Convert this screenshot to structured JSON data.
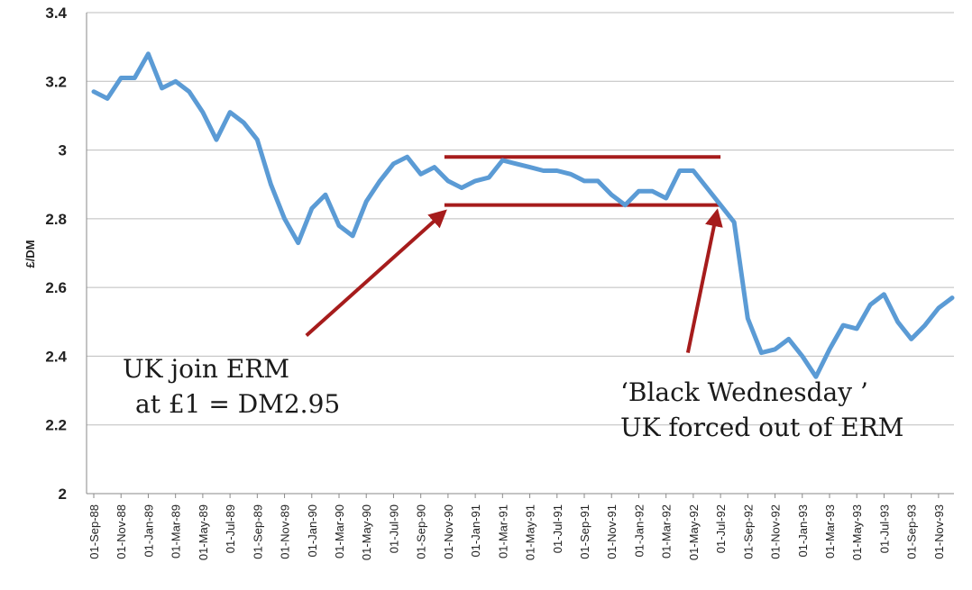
{
  "chart_data": {
    "type": "line",
    "title": "",
    "xlabel": "",
    "ylabel": "£/DM",
    "ylim": [
      2,
      3.4
    ],
    "yticks": [
      "2",
      "2.2",
      "2.4",
      "2.6",
      "2.8",
      "3",
      "3.2",
      "3.4"
    ],
    "grid": true,
    "legend": "none",
    "colors": {
      "series": "#5b9bd5",
      "annotation": "#a61c1c",
      "grid": "#bdbdbd"
    },
    "x_labels": [
      "01-Sep-88",
      "01-Nov-88",
      "01-Jan-89",
      "01-Mar-89",
      "01-May-89",
      "01-Jul-89",
      "01-Sep-89",
      "01-Nov-89",
      "01-Jan-90",
      "01-Mar-90",
      "01-May-90",
      "01-Jul-90",
      "01-Sep-90",
      "01-Nov-90",
      "01-Jan-91",
      "01-Mar-91",
      "01-May-91",
      "01-Jul-91",
      "01-Sep-91",
      "01-Nov-91",
      "01-Jan-92",
      "01-Mar-92",
      "01-May-92",
      "01-Jul-92",
      "01-Sep-92",
      "01-Nov-92",
      "01-Jan-93",
      "01-Mar-93",
      "01-May-93",
      "01-Jul-93",
      "01-Sep-93",
      "01-Nov-93"
    ],
    "series": [
      {
        "values": [
          3.17,
          3.15,
          3.21,
          3.21,
          3.28,
          3.18,
          3.2,
          3.17,
          3.11,
          3.03,
          3.11,
          3.08,
          3.03,
          2.9,
          2.8,
          2.73,
          2.83,
          2.87,
          2.78,
          2.75,
          2.85,
          2.91,
          2.96,
          2.98,
          2.93,
          2.95,
          2.91,
          2.89,
          2.91,
          2.92,
          2.97,
          2.96,
          2.95,
          2.94,
          2.94,
          2.93,
          2.91,
          2.91,
          2.87,
          2.84,
          2.88,
          2.88,
          2.86,
          2.94,
          2.94,
          2.89,
          2.84,
          2.79,
          2.51,
          2.41,
          2.42,
          2.45,
          2.4,
          2.34,
          2.42,
          2.49,
          2.48,
          2.55,
          2.58,
          2.5,
          2.45,
          2.49,
          2.54,
          2.57
        ]
      }
    ],
    "band": {
      "upper": 2.98,
      "lower": 2.84,
      "start_index": 26,
      "end_index": 46
    },
    "arrows": [
      {
        "from": {
          "index": 16,
          "value": 2.46
        },
        "to": {
          "index": 26,
          "value": 2.82
        }
      },
      {
        "from": {
          "index": 44,
          "value": 2.41
        },
        "to": {
          "index": 46,
          "value": 2.82
        }
      }
    ],
    "annotations": {
      "erm_join_line1": "UK join ERM",
      "erm_join_line2": "at £1 = DM2.95",
      "black_wed_line1": "‘Black Wednesday ’",
      "black_wed_line2": "UK forced out of ERM"
    }
  }
}
